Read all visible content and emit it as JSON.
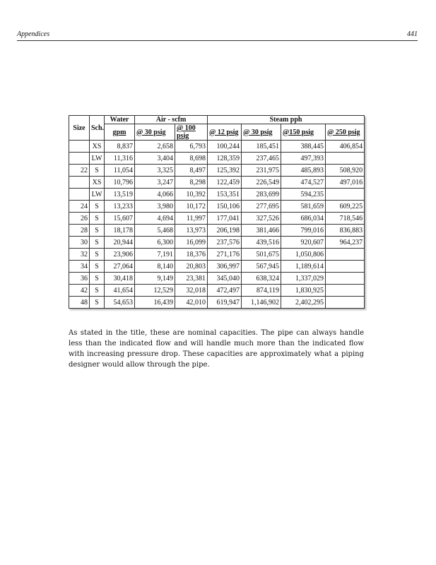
{
  "header": {
    "section": "Appendices",
    "page_number": "441"
  },
  "table": {
    "headers": {
      "size": "Size",
      "sch": "Sch.",
      "water": "Water",
      "water_unit": "gpm",
      "air": "Air - scfm",
      "steam": "Steam pph",
      "air_30": "@ 30 psig",
      "air_100": "@ 100 psig",
      "steam_12": "@ 12 psig",
      "steam_30": "@ 30 psig",
      "steam_150": "@150 psig",
      "steam_250": "@ 250 psig"
    },
    "rows": [
      [
        "",
        "XS",
        "8,837",
        "2,658",
        "6,793",
        "100,244",
        "185,451",
        "388,445",
        "406,854"
      ],
      [
        "",
        "LW",
        "11,316",
        "3,404",
        "8,698",
        "128,359",
        "237,465",
        "497,393",
        ""
      ],
      [
        "22",
        "S",
        "11,054",
        "3,325",
        "8,497",
        "125,392",
        "231,975",
        "485,893",
        "508,920"
      ],
      [
        "",
        "XS",
        "10,796",
        "3,247",
        "8,298",
        "122,459",
        "226,549",
        "474,527",
        "497,016"
      ],
      [
        "",
        "LW",
        "13,519",
        "4,066",
        "10,392",
        "153,351",
        "283,699",
        "594,235",
        ""
      ],
      [
        "24",
        "S",
        "13,233",
        "3,980",
        "10,172",
        "150,106",
        "277,695",
        "581,659",
        "609,225"
      ],
      [
        "26",
        "S",
        "15,607",
        "4,694",
        "11,997",
        "177,041",
        "327,526",
        "686,034",
        "718,546"
      ],
      [
        "28",
        "S",
        "18,178",
        "5,468",
        "13,973",
        "206,198",
        "381,466",
        "799,016",
        "836,883"
      ],
      [
        "30",
        "S",
        "20,944",
        "6,300",
        "16,099",
        "237,576",
        "439,516",
        "920,607",
        "964,237"
      ],
      [
        "32",
        "S",
        "23,906",
        "7,191",
        "18,376",
        "271,176",
        "501,675",
        "1,050,806",
        ""
      ],
      [
        "34",
        "S",
        "27,064",
        "8,140",
        "20,803",
        "306,997",
        "567,945",
        "1,189,614",
        ""
      ],
      [
        "36",
        "S",
        "30,418",
        "9,149",
        "23,381",
        "345,040",
        "638,324",
        "1,337,029",
        ""
      ],
      [
        "42",
        "S",
        "41,654",
        "12,529",
        "32,018",
        "472,497",
        "874,119",
        "1,830,925",
        ""
      ],
      [
        "48",
        "S",
        "54,653",
        "16,439",
        "42,010",
        "619,947",
        "1,146,902",
        "2,402,295",
        ""
      ]
    ]
  },
  "paragraph": "As stated in the title, these are nominal capacities. The pipe can always handle less than the indicated flow and will handle much more than the indicated flow with increasing pressure drop. These capacities are approximately what a piping designer would allow through the pipe."
}
